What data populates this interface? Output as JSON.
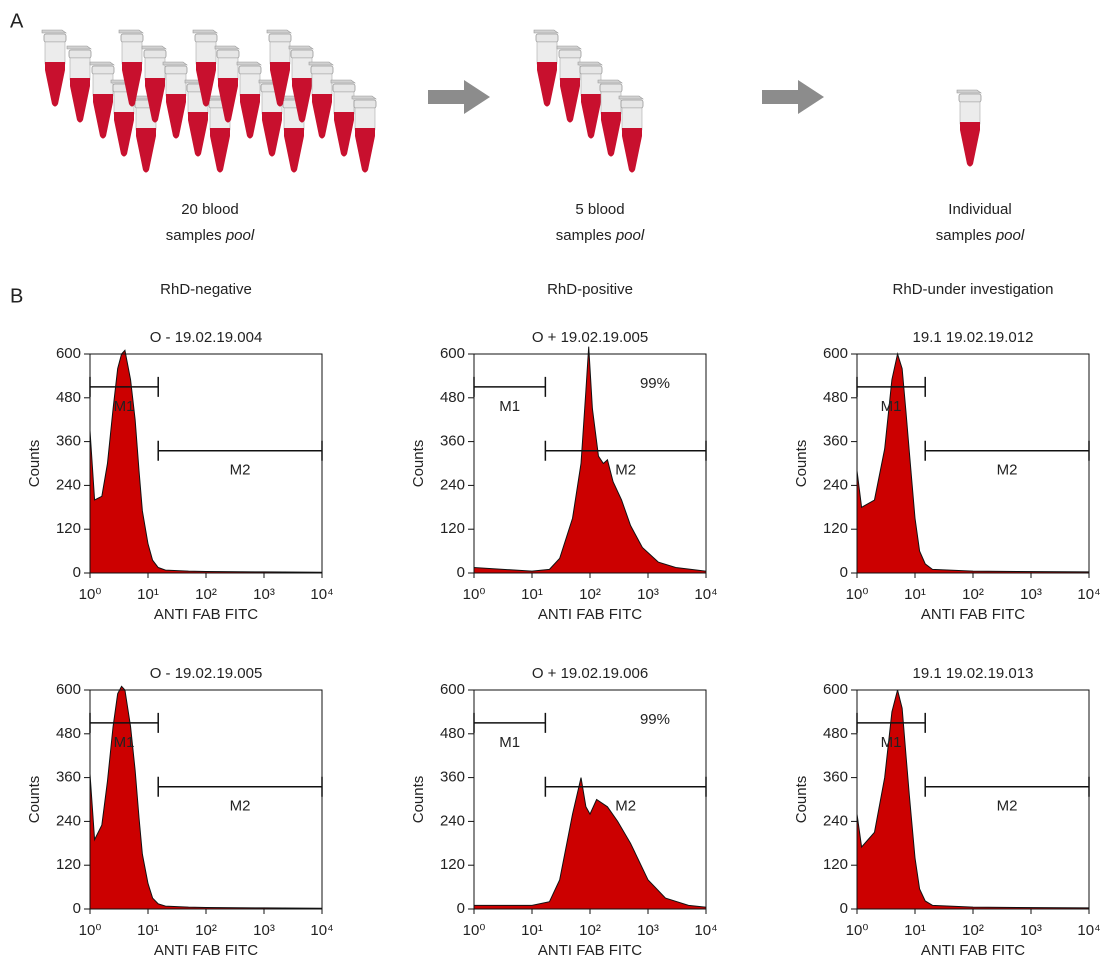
{
  "panel_a": {
    "label": "A",
    "captions": [
      {
        "line1": "20 blood",
        "line2": "samples",
        "italic": "pool"
      },
      {
        "line1": "5 blood",
        "line2": "samples",
        "italic": "pool"
      },
      {
        "line1": "Individual",
        "line2": "samples",
        "italic": "pool"
      }
    ]
  },
  "panel_b": {
    "label": "B",
    "columns": [
      "RhD-negative",
      "RhD-positive",
      "RhD-under investigation"
    ]
  },
  "chart_data": [
    {
      "type": "area",
      "title": "O - 19.02.19.004",
      "xlabel": "ANTI FAB FITC",
      "ylabel": "Counts",
      "color": "#cc0000",
      "log_x": true,
      "xlim": [
        1,
        10000
      ],
      "ylim": [
        0,
        600
      ],
      "xticks": [
        {
          "value": 1,
          "label": "10⁰"
        },
        {
          "value": 10,
          "label": "10¹"
        },
        {
          "value": 100,
          "label": "10²"
        },
        {
          "value": 1000,
          "label": "10³"
        },
        {
          "value": 10000,
          "label": "10⁴"
        }
      ],
      "yticks": [
        0,
        120,
        240,
        360,
        480,
        600
      ],
      "x": [
        1,
        1.2,
        1.6,
        2,
        2.5,
        3,
        3.5,
        4,
        5,
        6,
        7,
        8,
        10,
        12,
        15,
        20,
        50,
        100,
        1000,
        10000
      ],
      "values": [
        390,
        200,
        210,
        300,
        450,
        560,
        600,
        610,
        530,
        420,
        280,
        170,
        80,
        35,
        15,
        8,
        5,
        4,
        3,
        2
      ],
      "gates": [
        {
          "label": "M1",
          "range": [
            1,
            15
          ],
          "y": 510
        },
        {
          "label": "M2",
          "range": [
            15,
            10000
          ],
          "y": 335
        }
      ]
    },
    {
      "type": "area",
      "title": "O + 19.02.19.005",
      "xlabel": "ANTI FAB FITC",
      "ylabel": "Counts",
      "color": "#cc0000",
      "log_x": true,
      "xlim": [
        1,
        10000
      ],
      "ylim": [
        0,
        600
      ],
      "xticks": [
        {
          "value": 1,
          "label": "10⁰"
        },
        {
          "value": 10,
          "label": "10¹"
        },
        {
          "value": 100,
          "label": "10²"
        },
        {
          "value": 1000,
          "label": "10³"
        },
        {
          "value": 10000,
          "label": "10⁴"
        }
      ],
      "yticks": [
        0,
        120,
        240,
        360,
        480,
        600
      ],
      "x": [
        1,
        10,
        20,
        30,
        50,
        70,
        85,
        95,
        110,
        140,
        170,
        200,
        250,
        350,
        500,
        800,
        1500,
        3000,
        10000
      ],
      "values": [
        15,
        5,
        10,
        40,
        150,
        300,
        500,
        620,
        450,
        320,
        300,
        310,
        250,
        200,
        130,
        70,
        30,
        15,
        5
      ],
      "gates": [
        {
          "label": "M1",
          "range": [
            1,
            17
          ],
          "y": 510
        },
        {
          "label": "M2",
          "range": [
            17,
            10000
          ],
          "y": 335
        }
      ],
      "annotation": "99%"
    },
    {
      "type": "area",
      "title": "19.1 19.02.19.012",
      "xlabel": "ANTI FAB FITC",
      "ylabel": "Counts",
      "color": "#cc0000",
      "log_x": true,
      "xlim": [
        1,
        10000
      ],
      "ylim": [
        0,
        600
      ],
      "xticks": [
        {
          "value": 1,
          "label": "10⁰"
        },
        {
          "value": 10,
          "label": "10¹"
        },
        {
          "value": 100,
          "label": "10²"
        },
        {
          "value": 1000,
          "label": "10³"
        },
        {
          "value": 10000,
          "label": "10⁴"
        }
      ],
      "yticks": [
        0,
        120,
        240,
        360,
        480,
        600
      ],
      "x": [
        1,
        1.2,
        2,
        3,
        4,
        5,
        6,
        7,
        8,
        10,
        12,
        15,
        20,
        100,
        10000
      ],
      "values": [
        280,
        180,
        200,
        340,
        530,
        600,
        560,
        440,
        330,
        150,
        60,
        25,
        10,
        5,
        3
      ],
      "gates": [
        {
          "label": "M1",
          "range": [
            1,
            15
          ],
          "y": 510
        },
        {
          "label": "M2",
          "range": [
            15,
            10000
          ],
          "y": 335
        }
      ]
    },
    {
      "type": "area",
      "title": "O - 19.02.19.005",
      "xlabel": "ANTI FAB FITC",
      "ylabel": "Counts",
      "color": "#cc0000",
      "log_x": true,
      "xlim": [
        1,
        10000
      ],
      "ylim": [
        0,
        600
      ],
      "xticks": [
        {
          "value": 1,
          "label": "10⁰"
        },
        {
          "value": 10,
          "label": "10¹"
        },
        {
          "value": 100,
          "label": "10²"
        },
        {
          "value": 1000,
          "label": "10³"
        },
        {
          "value": 10000,
          "label": "10⁴"
        }
      ],
      "yticks": [
        0,
        120,
        240,
        360,
        480,
        600
      ],
      "x": [
        1,
        1.2,
        1.6,
        2,
        2.5,
        3,
        3.5,
        4,
        5,
        6,
        7,
        8,
        10,
        12,
        15,
        20,
        50,
        100,
        1000,
        10000
      ],
      "values": [
        370,
        190,
        230,
        350,
        500,
        590,
        610,
        600,
        500,
        380,
        250,
        150,
        70,
        30,
        14,
        8,
        5,
        4,
        3,
        2
      ],
      "gates": [
        {
          "label": "M1",
          "range": [
            1,
            15
          ],
          "y": 510
        },
        {
          "label": "M2",
          "range": [
            15,
            10000
          ],
          "y": 335
        }
      ]
    },
    {
      "type": "area",
      "title": "O + 19.02.19.006",
      "xlabel": "ANTI FAB FITC",
      "ylabel": "Counts",
      "color": "#cc0000",
      "log_x": true,
      "xlim": [
        1,
        10000
      ],
      "ylim": [
        0,
        600
      ],
      "xticks": [
        {
          "value": 1,
          "label": "10⁰"
        },
        {
          "value": 10,
          "label": "10¹"
        },
        {
          "value": 100,
          "label": "10²"
        },
        {
          "value": 1000,
          "label": "10³"
        },
        {
          "value": 10000,
          "label": "10⁴"
        }
      ],
      "yticks": [
        0,
        120,
        240,
        360,
        480,
        600
      ],
      "x": [
        1,
        10,
        20,
        30,
        50,
        70,
        85,
        100,
        130,
        200,
        300,
        500,
        1000,
        2000,
        5000,
        10000
      ],
      "values": [
        10,
        10,
        20,
        80,
        260,
        360,
        280,
        260,
        300,
        280,
        240,
        180,
        80,
        30,
        10,
        5
      ],
      "gates": [
        {
          "label": "M1",
          "range": [
            1,
            17
          ],
          "y": 510
        },
        {
          "label": "M2",
          "range": [
            17,
            10000
          ],
          "y": 335
        }
      ],
      "annotation": "99%"
    },
    {
      "type": "area",
      "title": "19.1 19.02.19.013",
      "xlabel": "ANTI FAB FITC",
      "ylabel": "Counts",
      "color": "#cc0000",
      "log_x": true,
      "xlim": [
        1,
        10000
      ],
      "ylim": [
        0,
        600
      ],
      "xticks": [
        {
          "value": 1,
          "label": "10⁰"
        },
        {
          "value": 10,
          "label": "10¹"
        },
        {
          "value": 100,
          "label": "10²"
        },
        {
          "value": 1000,
          "label": "10³"
        },
        {
          "value": 10000,
          "label": "10⁴"
        }
      ],
      "yticks": [
        0,
        120,
        240,
        360,
        480,
        600
      ],
      "x": [
        1,
        1.2,
        2,
        3,
        4,
        5,
        6,
        7,
        8,
        10,
        12,
        15,
        20,
        100,
        10000
      ],
      "values": [
        260,
        170,
        210,
        360,
        540,
        600,
        550,
        420,
        310,
        140,
        55,
        22,
        10,
        5,
        3
      ],
      "gates": [
        {
          "label": "M1",
          "range": [
            1,
            15
          ],
          "y": 510
        },
        {
          "label": "M2",
          "range": [
            15,
            10000
          ],
          "y": 335
        }
      ]
    }
  ]
}
